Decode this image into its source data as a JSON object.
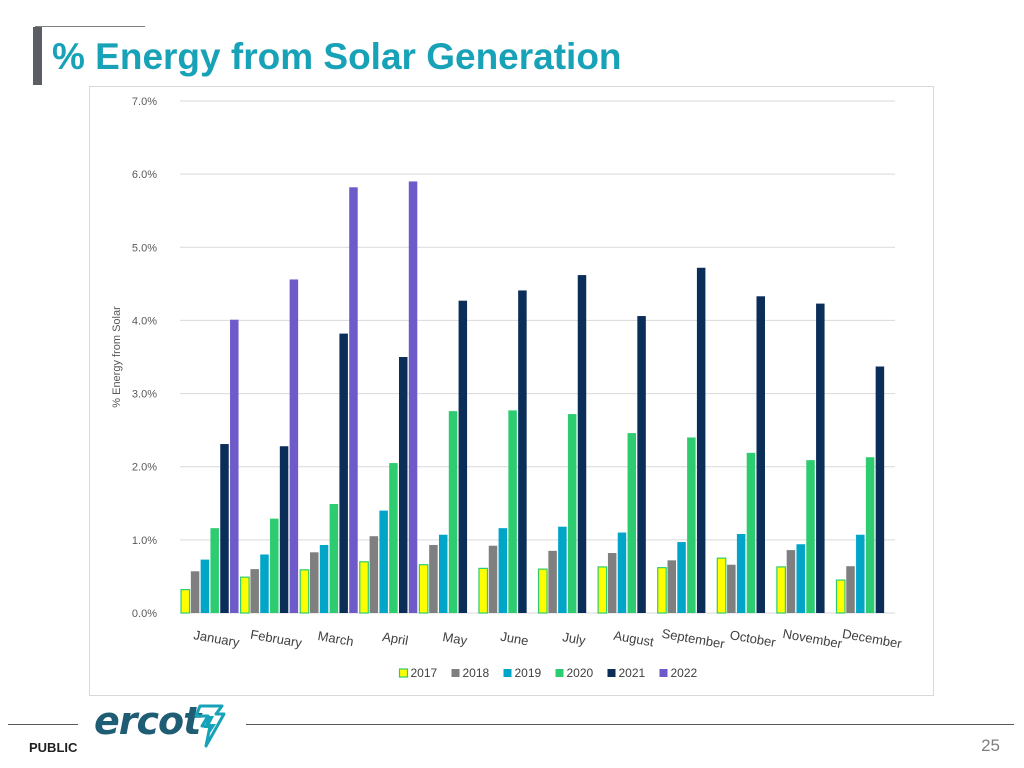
{
  "slide": {
    "title": "% Energy from Solar Generation",
    "classification": "PUBLIC",
    "page_number": "25",
    "logo_text": "ercot"
  },
  "colors": {
    "title": "#17a2b8",
    "gridline": "#d9d9d9",
    "axis_text": "#595959"
  },
  "chart_data": {
    "type": "bar",
    "title": "",
    "xlabel": "",
    "ylabel": "% Energy from Solar",
    "ylim": [
      0,
      7
    ],
    "yticks": [
      0,
      1,
      2,
      3,
      4,
      5,
      6,
      7
    ],
    "ytick_labels": [
      "0.0%",
      "1.0%",
      "2.0%",
      "3.0%",
      "4.0%",
      "5.0%",
      "6.0%",
      "7.0%"
    ],
    "grid": true,
    "legend_position": "bottom",
    "categories": [
      "January",
      "February",
      "March",
      "April",
      "May",
      "June",
      "July",
      "August",
      "September",
      "October",
      "November",
      "December"
    ],
    "series": [
      {
        "name": "2017",
        "color": "#ffff00",
        "outline": "#2ecc71",
        "values": [
          0.32,
          0.49,
          0.59,
          0.7,
          0.66,
          0.61,
          0.6,
          0.63,
          0.62,
          0.75,
          0.63,
          0.45
        ]
      },
      {
        "name": "2018",
        "color": "#7f7f7f",
        "values": [
          0.57,
          0.6,
          0.83,
          1.05,
          0.93,
          0.92,
          0.85,
          0.82,
          0.72,
          0.66,
          0.86,
          0.64
        ]
      },
      {
        "name": "2019",
        "color": "#00a5c8",
        "values": [
          0.73,
          0.8,
          0.93,
          1.4,
          1.07,
          1.16,
          1.18,
          1.1,
          0.97,
          1.08,
          0.94,
          1.07
        ]
      },
      {
        "name": "2020",
        "color": "#2ecc71",
        "values": [
          1.16,
          1.29,
          1.49,
          2.05,
          2.76,
          2.77,
          2.72,
          2.46,
          2.4,
          2.19,
          2.09,
          2.13
        ]
      },
      {
        "name": "2021",
        "color": "#0b2e59",
        "values": [
          2.31,
          2.28,
          3.82,
          3.5,
          4.27,
          4.41,
          4.62,
          4.06,
          4.72,
          4.33,
          4.23,
          3.37
        ]
      },
      {
        "name": "2022",
        "color": "#6e5ac8",
        "values": [
          4.01,
          4.56,
          5.82,
          5.9,
          null,
          null,
          null,
          null,
          null,
          null,
          null,
          null
        ]
      }
    ]
  }
}
